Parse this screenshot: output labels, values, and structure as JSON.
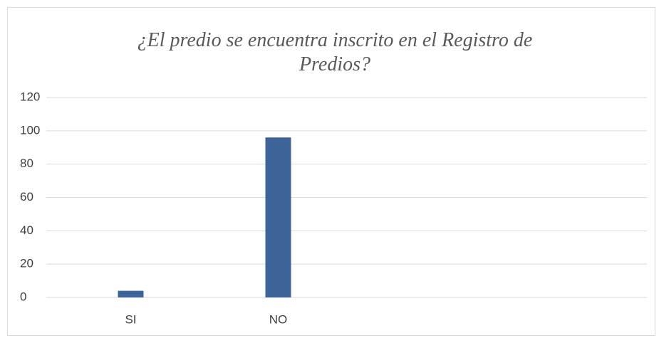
{
  "chart_data": {
    "type": "bar",
    "title": "¿El predio se encuentra inscrito en el Registro de Predios?",
    "categories": [
      "SI",
      "NO",
      null,
      null
    ],
    "values": [
      4,
      96,
      null,
      null
    ],
    "color": "#3d6498",
    "ylim": [
      0,
      120
    ],
    "yticks": [
      0,
      20,
      40,
      60,
      80,
      100,
      120
    ],
    "grid": true
  }
}
